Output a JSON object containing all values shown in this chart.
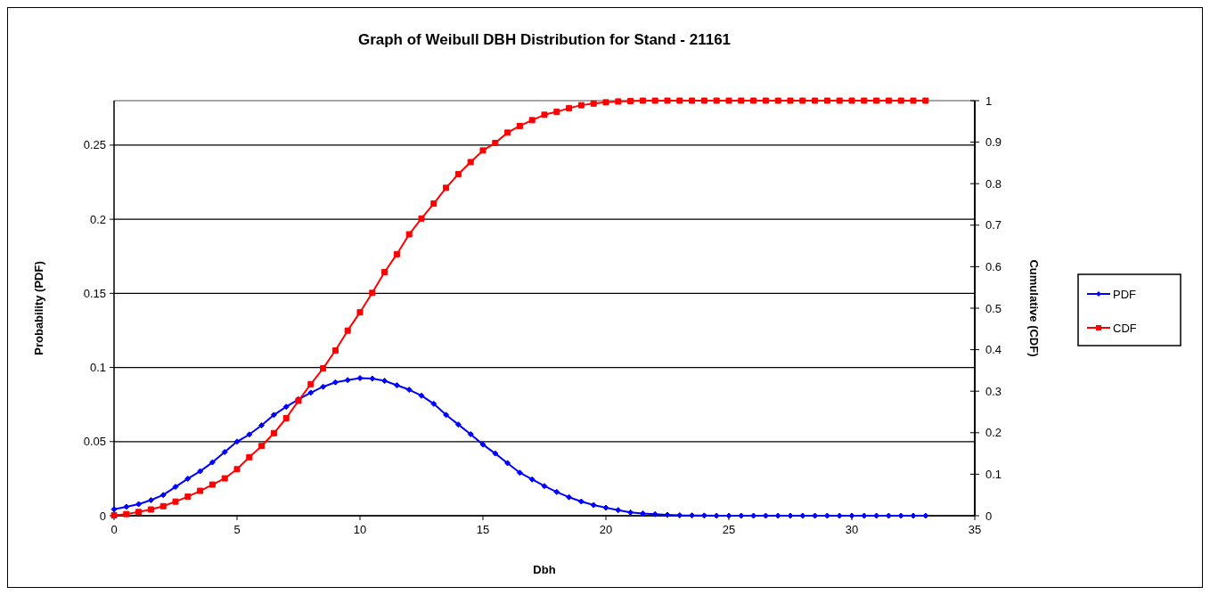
{
  "chart_data": {
    "type": "line",
    "title": "Graph of Weibull DBH Distribution for Stand - 21161",
    "xlabel": "Dbh",
    "ylabel": "Probability (PDF)",
    "y2label": "Cumulative (CDF)",
    "x": [
      0,
      0.5,
      1,
      1.5,
      2,
      2.5,
      3,
      3.5,
      4,
      4.5,
      5,
      5.5,
      6,
      6.5,
      7,
      7.5,
      8,
      8.5,
      9,
      9.5,
      10,
      10.5,
      11,
      11.5,
      12,
      12.5,
      13,
      13.5,
      14,
      14.5,
      15,
      15.5,
      16,
      16.5,
      17,
      17.5,
      18,
      18.5,
      19,
      19.5,
      20,
      20.5,
      21,
      21.5,
      22,
      22.5,
      23,
      23.5,
      24,
      24.5,
      25,
      25.5,
      26,
      26.5,
      27,
      27.5,
      28,
      28.5,
      29,
      29.5,
      30,
      30.5,
      31,
      31.5,
      32,
      32.5,
      33
    ],
    "series": [
      {
        "name": "PDF",
        "color": "#0000ff",
        "marker": "diamond",
        "values": [
          0.0044,
          0.006,
          0.0078,
          0.0105,
          0.014,
          0.0195,
          0.025,
          0.03,
          0.036,
          0.043,
          0.05,
          0.0548,
          0.061,
          0.068,
          0.0735,
          0.0785,
          0.083,
          0.087,
          0.09,
          0.0915,
          0.0928,
          0.0925,
          0.091,
          0.088,
          0.085,
          0.081,
          0.0755,
          0.068,
          0.0615,
          0.055,
          0.048,
          0.042,
          0.0355,
          0.029,
          0.0245,
          0.02,
          0.016,
          0.0125,
          0.0096,
          0.0072,
          0.0054,
          0.0038,
          0.0022,
          0.0015,
          0.001,
          0.0006,
          0.0003,
          0.0002,
          0.0001,
          0,
          0,
          0,
          0,
          0,
          0,
          0,
          0,
          0,
          0,
          0,
          0,
          0,
          0,
          0,
          0,
          0,
          0
        ]
      },
      {
        "name": "CDF",
        "color": "#ff0000",
        "marker": "square",
        "axis": "y2",
        "values": [
          0.001,
          0.004,
          0.009,
          0.015,
          0.023,
          0.034,
          0.046,
          0.06,
          0.075,
          0.09,
          0.112,
          0.141,
          0.168,
          0.199,
          0.235,
          0.277,
          0.317,
          0.355,
          0.398,
          0.446,
          0.49,
          0.537,
          0.587,
          0.63,
          0.678,
          0.716,
          0.752,
          0.79,
          0.823,
          0.852,
          0.88,
          0.898,
          0.923,
          0.939,
          0.953,
          0.966,
          0.973,
          0.982,
          0.989,
          0.993,
          0.996,
          0.998,
          0.999,
          1,
          1,
          1,
          1,
          1,
          1,
          1,
          1,
          1,
          1,
          1,
          1,
          1,
          1,
          1,
          1,
          1,
          1,
          1,
          1,
          1,
          1,
          1,
          1
        ]
      }
    ],
    "xlim": [
      0,
      35
    ],
    "xticks": [
      0,
      5,
      10,
      15,
      20,
      25,
      30,
      35
    ],
    "ylim": [
      0,
      0.28
    ],
    "yticks": [
      0,
      0.05,
      0.1,
      0.15,
      0.2,
      0.25
    ],
    "y2lim": [
      0,
      1
    ],
    "y2ticks": [
      0,
      0.1,
      0.2,
      0.3,
      0.4,
      0.5,
      0.6,
      0.7,
      0.8,
      0.9,
      1
    ],
    "grid": "y",
    "legend": "right",
    "line_style": "solid"
  }
}
